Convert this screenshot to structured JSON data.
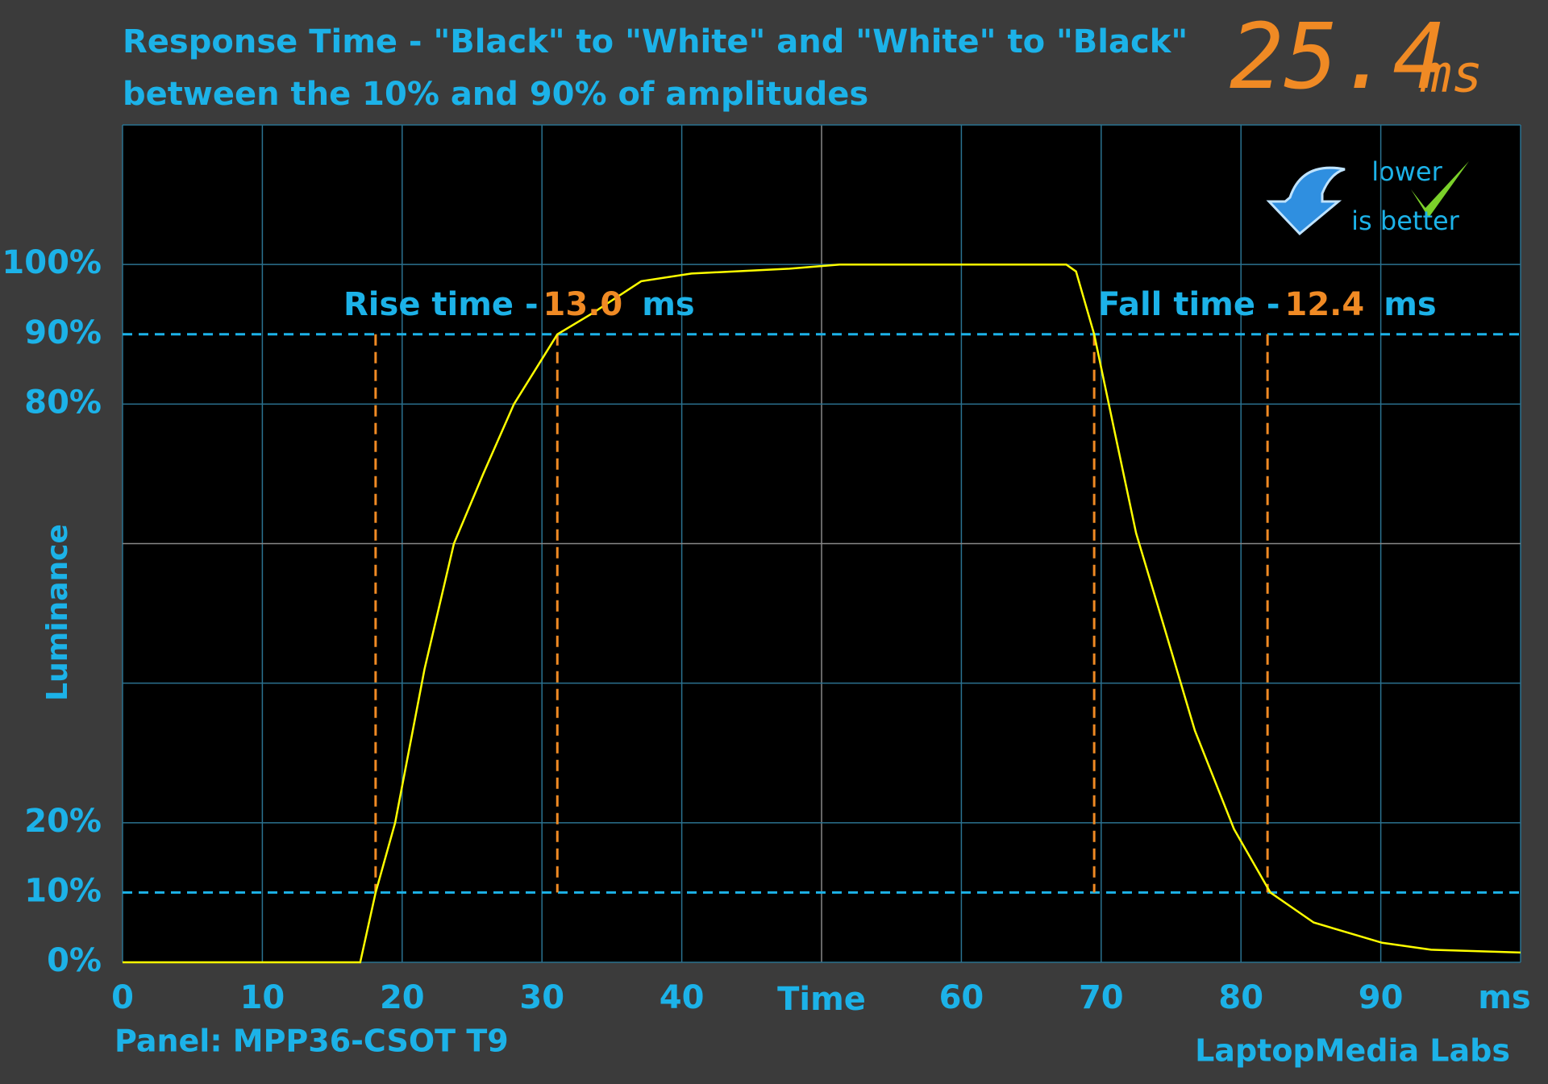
{
  "chart_data": {
    "type": "line",
    "title": "Response Time - \"Black\" to \"White\" and \"White\" to \"Black\"",
    "subtitle": "between the 10% and 90% of amplitudes",
    "result": "25.4",
    "result_unit": "ms",
    "badge": [
      "lower",
      "is better"
    ],
    "ylabel": "Luminance",
    "xlabel": "Time",
    "x_unit": "ms",
    "panel": "Panel: MPP36-CSOT T9",
    "credit": "LaptopMedia Labs",
    "xlim": [
      0,
      100
    ],
    "ylim": [
      0,
      120
    ],
    "xticks": [
      0,
      10,
      20,
      30,
      40,
      60,
      70,
      80,
      90
    ],
    "xgrid": [
      0,
      10,
      20,
      30,
      40,
      50,
      60,
      70,
      80,
      90,
      100
    ],
    "yticks": [
      {
        "value": 0,
        "label": "0%"
      },
      {
        "value": 10,
        "label": "10%"
      },
      {
        "value": 20,
        "label": "20%"
      },
      {
        "value": 80,
        "label": "80%"
      },
      {
        "value": 90,
        "label": "90%"
      },
      {
        "value": 100,
        "label": "100%"
      }
    ],
    "ygrid": [
      0,
      20,
      40,
      60,
      80,
      100,
      120
    ],
    "reference_lines": [
      10,
      90
    ],
    "color": "#ffff00",
    "x": [
      0,
      17,
      18.1,
      19.5,
      21.6,
      23.7,
      25.8,
      28,
      31.1,
      33.6,
      37.1,
      40.7,
      47.7,
      51.3,
      67.5,
      68.2,
      69.5,
      71,
      72.5,
      74.6,
      76.7,
      79.5,
      82.1,
      85.2,
      90.1,
      93.6,
      100
    ],
    "values": [
      0,
      0,
      10,
      20,
      42,
      60,
      70,
      80,
      90,
      93,
      97.6,
      98.7,
      99.4,
      100,
      100,
      99,
      90,
      75.7,
      61.5,
      47.4,
      33.2,
      19.1,
      10,
      5.7,
      2.8,
      1.8,
      1.4
    ],
    "rise": {
      "label": "Rise time - ",
      "value": "13.0",
      "unit": "ms",
      "markers": [
        18.1,
        31.1
      ]
    },
    "fall": {
      "label": "Fall time - ",
      "value": "12.4",
      "unit": "ms",
      "markers": [
        69.5,
        81.9
      ]
    }
  }
}
